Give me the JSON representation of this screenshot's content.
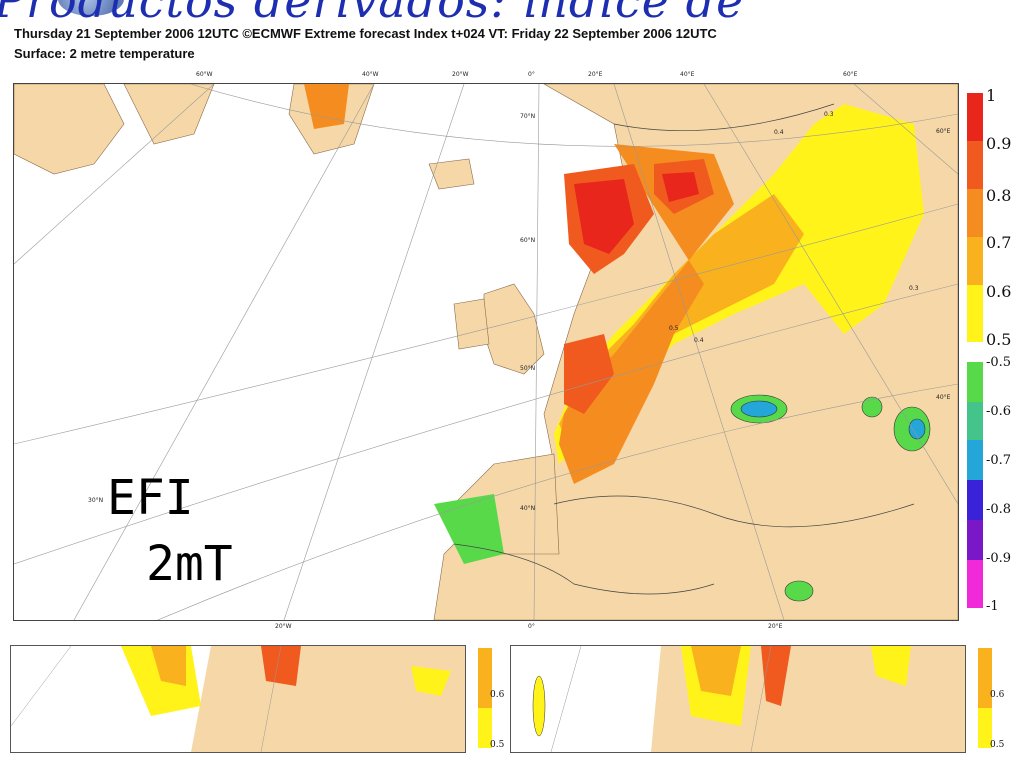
{
  "slide": {
    "title": "Productos derivados: índice de",
    "header_line1": "Thursday 21 September 2006 12UTC ©ECMWF Extreme forecast Index t+024 VT: Friday 22 September 2006 12UTC",
    "header_line2": "Surface: 2 metre temperature"
  },
  "overlay": {
    "line1": "EFI",
    "line2": "2mT"
  },
  "map": {
    "lon_top": [
      "60°W",
      "40°W",
      "20°W",
      "0°",
      "20°E",
      "40°E",
      "60°E"
    ],
    "lon_bottom": [
      "20°W",
      "0°",
      "20°E"
    ],
    "lat_labels": [
      "70°N",
      "60°N",
      "50°N",
      "40°N",
      "30°N"
    ],
    "lat_right": [
      "60°E",
      "40°E"
    ],
    "contour_labels": [
      "0.3",
      "0.4",
      "0.5",
      "0.3",
      "0.4"
    ]
  },
  "legend": {
    "positive_ticks": [
      "1",
      "0.9",
      "0.8",
      "0.7",
      "0.6",
      "0.5"
    ],
    "negative_ticks": [
      "-0.5",
      "-0.6",
      "-0.7",
      "-0.8",
      "-0.9",
      "-1"
    ],
    "positive_colors": [
      "#e8261c",
      "#f05a1e",
      "#f58c1f",
      "#f9b21e",
      "#fff31a"
    ],
    "negative_colors": [
      "#58d94a",
      "#44c48a",
      "#24a6d8",
      "#3a22d8",
      "#7a18c8",
      "#f02ad8"
    ],
    "land_color": "#f6d8a8",
    "sea_color": "#ffffff"
  },
  "mini_maps": {
    "left_ticks": [
      "0.6",
      "0.5"
    ],
    "right_ticks": [
      "0.6",
      "0.5"
    ]
  }
}
